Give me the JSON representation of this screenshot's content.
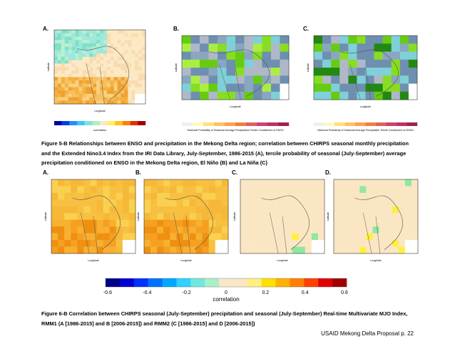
{
  "figure_5b": {
    "panels": [
      {
        "label": "A.",
        "x_axis": "Longitude",
        "y_axis": "Latitude",
        "colorbar": "correlation"
      },
      {
        "label": "B.",
        "x_axis": "Longitude",
        "y_axis": "Latitude",
        "colorbar": "Historical Probability of Seasonal Average Precipitation Tercile Conditioned on ENSO"
      },
      {
        "label": "C.",
        "x_axis": "Longitude",
        "y_axis": "Latitude",
        "colorbar": "Historical Probability of Seasonal Average Precipitation Tercile Conditioned on ENSO"
      }
    ],
    "caption": "Figure 5-B Relationships between ENSO and precipitation in the Mekong Delta region; correlation between CHIRPS seasonal monthly precipitation and the Extended Nino3.4 Index from the IRI Data Library, July-September, 1986-2015 (A), tercile probability of seasonal (July-September) average precipitation conditioned on ENSO in the Mekong Delta region, El Niño (B) and La Niña (C)"
  },
  "figure_6b": {
    "panels": [
      {
        "label": "A.",
        "x_axis": "Longitude",
        "y_axis": "Latitude"
      },
      {
        "label": "B.",
        "x_axis": "Longitude",
        "y_axis": "Latitude"
      },
      {
        "label": "C.",
        "x_axis": "Longitude",
        "y_axis": "Latitude"
      },
      {
        "label": "D.",
        "x_axis": "Longitude",
        "y_axis": "Latitude"
      }
    ],
    "colorbar": {
      "ticks": [
        "-0.6",
        "-0.4",
        "-0.2",
        "0",
        "0.2",
        "0.4",
        "0.6"
      ],
      "label": "correlation"
    },
    "caption": "Figure 6-B Correlation between CHIRPS seasonal (July-September) precipitation and seasonal (July-September) Real-time Multivariate MJO Index, RMM1 (A [1986-2015] and B [2006-2015]) and RMM2 (C [1986-2015] and D [2006-2015])"
  },
  "footer": "USAID Mekong Delta Proposal p. 22"
}
